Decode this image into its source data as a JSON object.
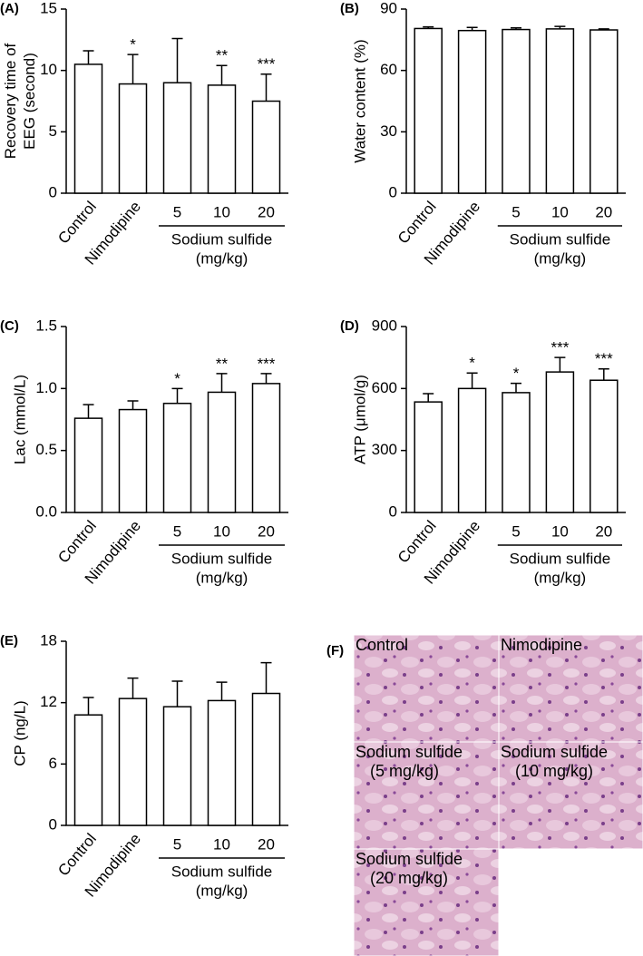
{
  "chart_data": [
    {
      "type": "bar",
      "panel": "(A)",
      "ylabel": [
        "Recovery time of",
        "EEG (second)"
      ],
      "categories": [
        "Control",
        "Nimodipine",
        "5",
        "10",
        "20"
      ],
      "group_label": [
        "Sodium sulfide",
        "(mg/kg)"
      ],
      "values": [
        10.5,
        8.9,
        9.0,
        8.8,
        7.5
      ],
      "errors": [
        1.1,
        2.4,
        3.6,
        1.6,
        2.2
      ],
      "annotations": [
        null,
        "*",
        null,
        "**",
        "***"
      ],
      "color": "#ffffff",
      "ylim": [
        0,
        15
      ],
      "yticks": [
        0,
        5,
        10,
        15
      ]
    },
    {
      "type": "bar",
      "panel": "(B)",
      "ylabel": [
        "Water content (%)"
      ],
      "categories": [
        "Control",
        "Nimodipine",
        "5",
        "10",
        "20"
      ],
      "group_label": [
        "Sodium sulfide",
        "(mg/kg)"
      ],
      "values": [
        80.5,
        79.5,
        80,
        80.3,
        79.8
      ],
      "errors": [
        0.8,
        1.5,
        0.8,
        1.2,
        0.5
      ],
      "color": "#ffffff",
      "ylim": [
        0,
        90
      ],
      "yticks": [
        0,
        30,
        60,
        90
      ]
    },
    {
      "type": "bar",
      "panel": "(C)",
      "ylabel": [
        "Lac (mmol/L)"
      ],
      "categories": [
        "Control",
        "Nimodipine",
        "5",
        "10",
        "20"
      ],
      "group_label": [
        "Sodium sulfide",
        "(mg/kg)"
      ],
      "values": [
        0.76,
        0.83,
        0.88,
        0.97,
        1.04
      ],
      "errors": [
        0.11,
        0.07,
        0.12,
        0.15,
        0.08
      ],
      "annotations": [
        null,
        null,
        "*",
        "**",
        "***"
      ],
      "color": "#ffffff",
      "ylim": [
        0,
        1.5
      ],
      "yticks": [
        {
          "value": 0,
          "label": "0.0"
        },
        {
          "value": 0.5,
          "label": "0.5"
        },
        {
          "value": 1,
          "label": "1.0"
        },
        {
          "value": 1.5,
          "label": "1.5"
        }
      ]
    },
    {
      "type": "bar",
      "panel": "(D)",
      "ylabel": [
        "ATP (μmol/g)"
      ],
      "categories": [
        "Control",
        "Nimodipine",
        "5",
        "10",
        "20"
      ],
      "group_label": [
        "Sodium sulfide",
        "(mg/kg)"
      ],
      "values": [
        535,
        600,
        580,
        680,
        640
      ],
      "errors": [
        40,
        75,
        45,
        70,
        55
      ],
      "annotations": [
        null,
        "*",
        "*",
        "***",
        "***"
      ],
      "color": "#ffffff",
      "ylim": [
        0,
        900
      ],
      "yticks": [
        0,
        300,
        600,
        900
      ]
    },
    {
      "type": "bar",
      "panel": "(E)",
      "ylabel": [
        "CP (ng/L)"
      ],
      "categories": [
        "Control",
        "Nimodipine",
        "5",
        "10",
        "20"
      ],
      "group_label": [
        "Sodium sulfide",
        "(mg/kg)"
      ],
      "values": [
        10.8,
        12.4,
        11.6,
        12.2,
        12.9
      ],
      "errors": [
        1.7,
        2.0,
        2.5,
        1.8,
        3.0
      ],
      "color": "#ffffff",
      "ylim": [
        0,
        18
      ],
      "yticks": [
        0,
        6,
        12,
        18
      ]
    }
  ],
  "image_panel": {
    "panel": "(F)",
    "images": [
      [
        "Control"
      ],
      [
        "Nimodipine"
      ],
      [
        "Sodium sulfide",
        "(5 mg/kg)"
      ],
      [
        "Sodium sulfide",
        "(10 mg/kg)"
      ],
      [
        "Sodium sulfide",
        "(20 mg/kg)"
      ]
    ]
  }
}
